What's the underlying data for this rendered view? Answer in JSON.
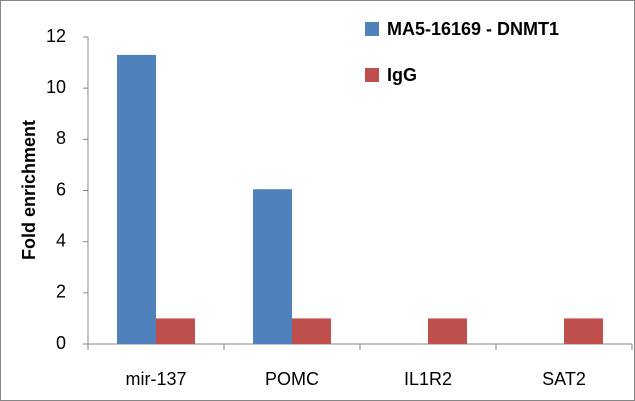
{
  "chart_data": {
    "type": "bar",
    "categories": [
      "mir-137",
      "POMC",
      "IL1R2",
      "SAT2"
    ],
    "series": [
      {
        "name": "MA5-16169 - DNMT1",
        "color": "#4f81bd",
        "values": [
          11.3,
          6.05,
          0,
          0
        ]
      },
      {
        "name": "IgG",
        "color": "#c0504d",
        "values": [
          1,
          1,
          1,
          1
        ]
      }
    ],
    "y_label": "Fold enrichment",
    "ylim": [
      0,
      12
    ],
    "yticks": [
      0,
      2,
      4,
      6,
      8,
      10,
      12
    ],
    "grid": false,
    "legend": "upper right"
  }
}
